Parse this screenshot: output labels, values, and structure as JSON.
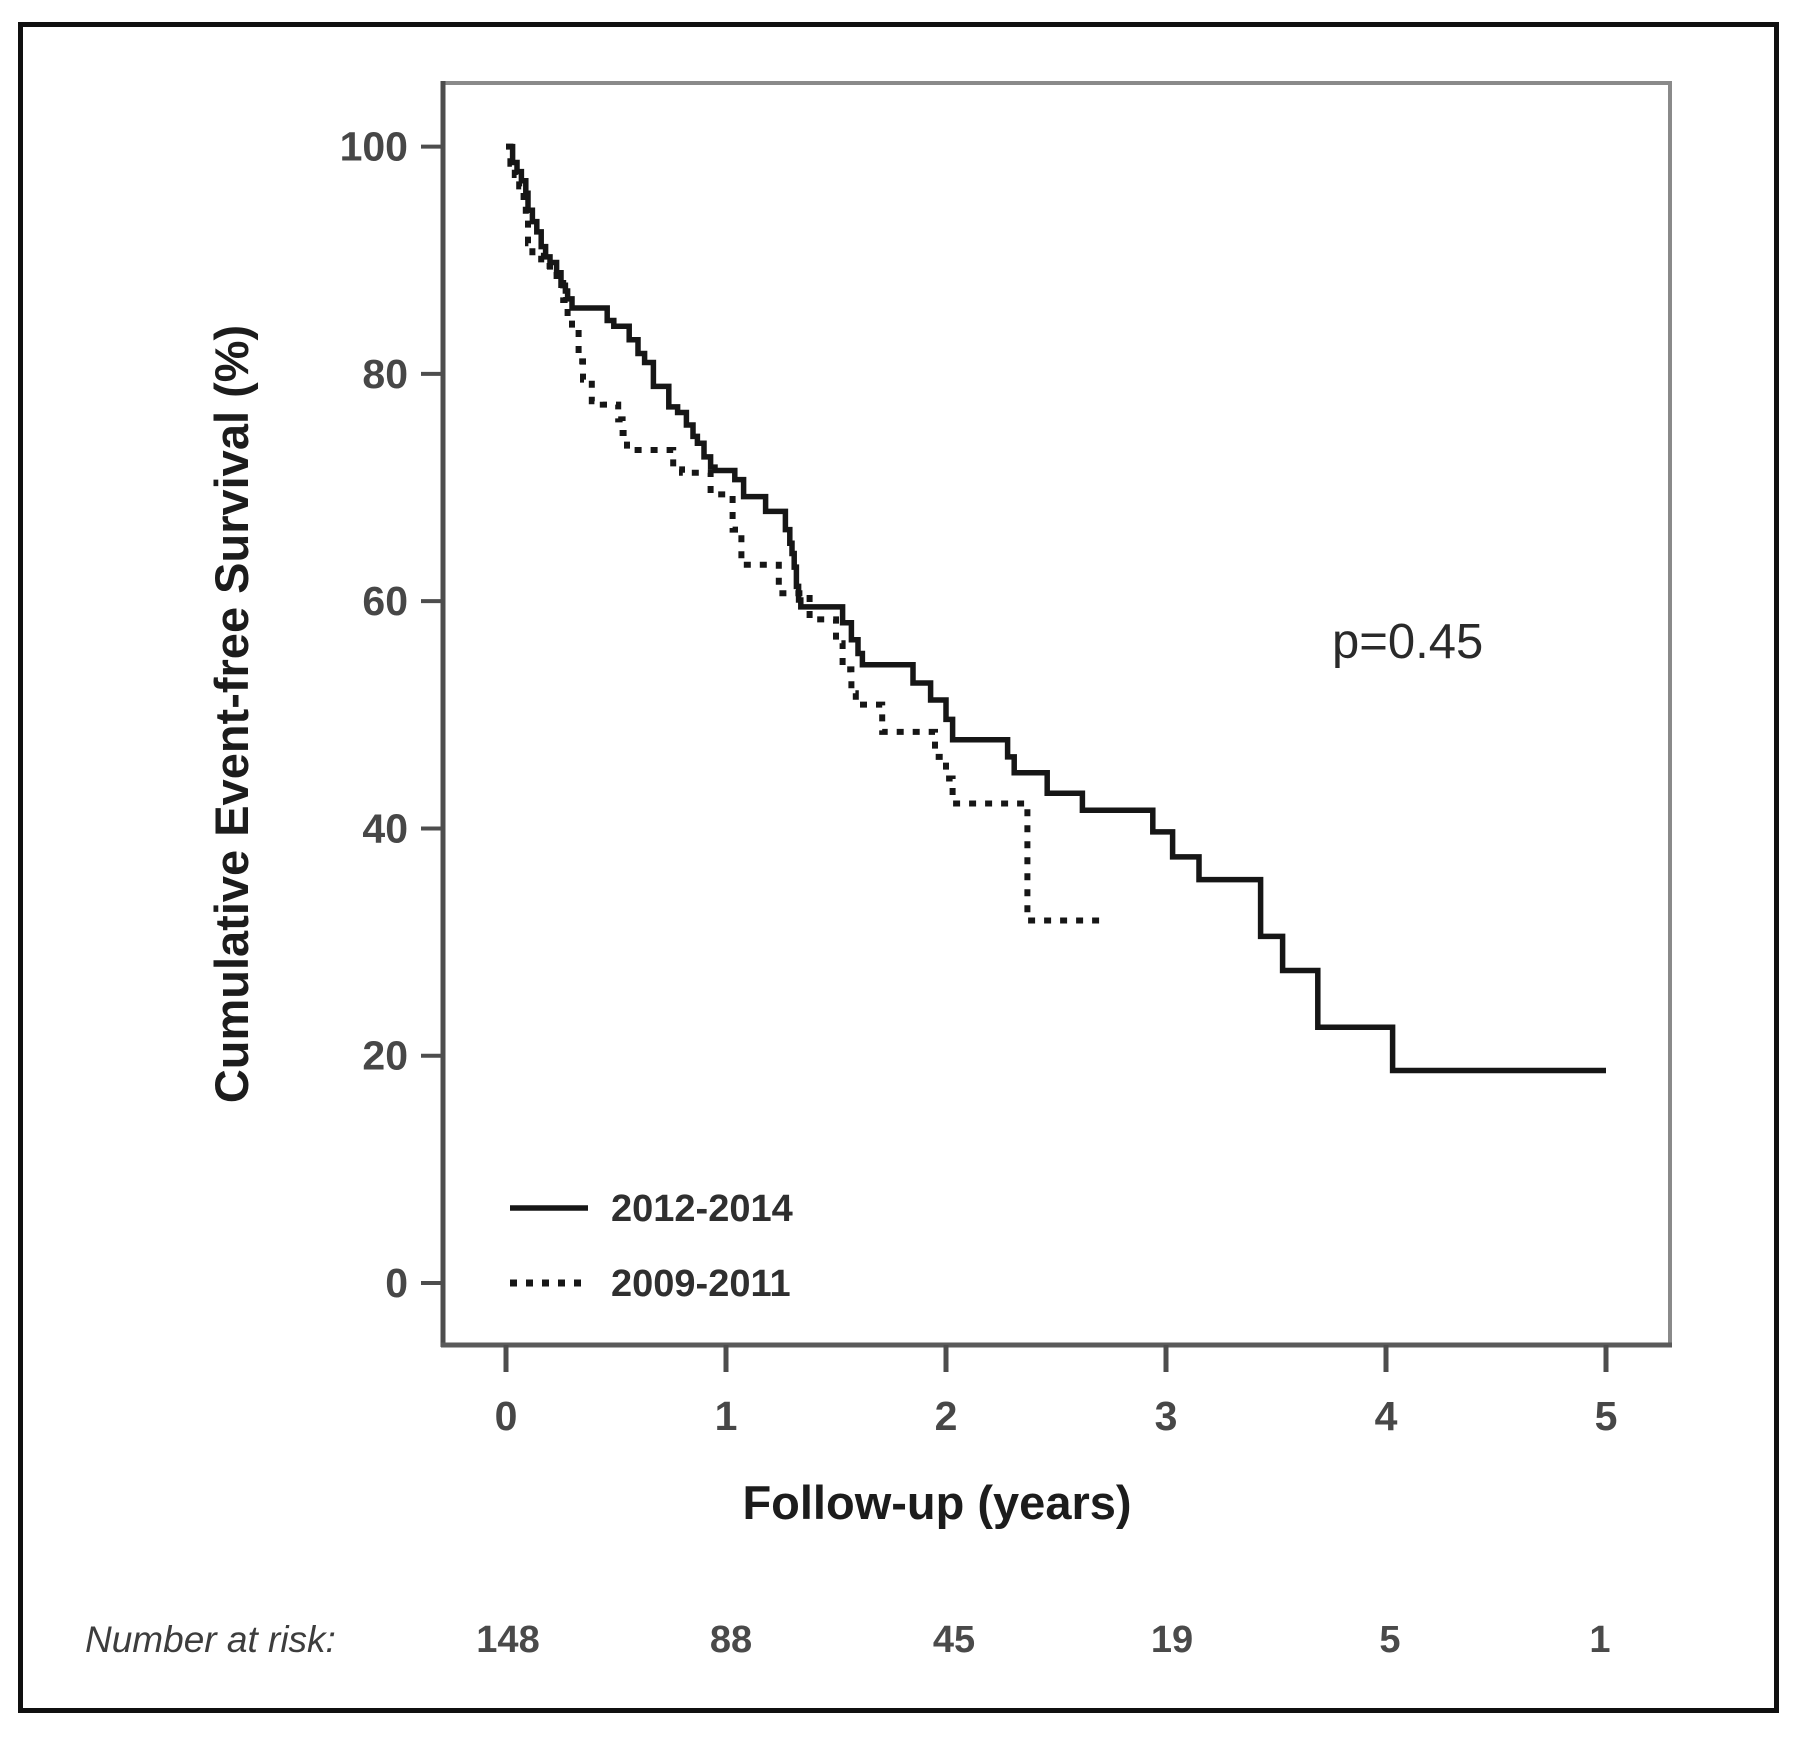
{
  "figure": {
    "p_value_label": "p=0.45",
    "y_axis_title": "Cumulative Event-free Survival (%)",
    "x_axis_title": "Follow-up (years)",
    "number_at_risk_label": "Number at risk:",
    "colors": {
      "curve": "#161616",
      "axis_dark": "#4d4d4d",
      "axis_light": "#8a8a8a",
      "tick_text": "#474747",
      "outer_border": "#101010",
      "background": "#ffffff"
    }
  },
  "chart_data": {
    "type": "line",
    "subtype": "kaplan-meier-step",
    "title": "",
    "xlabel": "Follow-up (years)",
    "ylabel": "Cumulative Event-free Survival (%)",
    "xlim": [
      0,
      5
    ],
    "ylim": [
      0,
      100
    ],
    "x_ticks": [
      0,
      1,
      2,
      3,
      4,
      5
    ],
    "y_ticks": [
      0,
      20,
      40,
      60,
      80,
      100
    ],
    "grid": false,
    "legend_position": "lower-left-inside",
    "annotation": {
      "text": "p=0.45"
    },
    "legend": [
      {
        "label": "2012-2014",
        "style": "solid"
      },
      {
        "label": "2009-2011",
        "style": "dashed"
      }
    ],
    "series": [
      {
        "name": "2012-2014",
        "style": "solid",
        "points": [
          [
            0,
            100
          ],
          [
            0.03,
            98.6
          ],
          [
            0.05,
            97.8
          ],
          [
            0.07,
            97.0
          ],
          [
            0.09,
            95.9
          ],
          [
            0.1,
            94.4
          ],
          [
            0.12,
            93.4
          ],
          [
            0.14,
            92.5
          ],
          [
            0.16,
            91.2
          ],
          [
            0.18,
            90.3
          ],
          [
            0.2,
            89.8
          ],
          [
            0.23,
            88.9
          ],
          [
            0.25,
            87.8
          ],
          [
            0.27,
            87.3
          ],
          [
            0.28,
            86.6
          ],
          [
            0.3,
            85.8
          ],
          [
            0.46,
            84.7
          ],
          [
            0.49,
            84.2
          ],
          [
            0.56,
            83.0
          ],
          [
            0.6,
            81.8
          ],
          [
            0.63,
            81.0
          ],
          [
            0.67,
            78.9
          ],
          [
            0.74,
            77.1
          ],
          [
            0.78,
            76.6
          ],
          [
            0.82,
            75.5
          ],
          [
            0.85,
            74.5
          ],
          [
            0.87,
            73.9
          ],
          [
            0.9,
            72.7
          ],
          [
            0.93,
            71.8
          ],
          [
            0.95,
            71.5
          ],
          [
            1.04,
            70.7
          ],
          [
            1.08,
            69.2
          ],
          [
            1.18,
            67.9
          ],
          [
            1.27,
            66.3
          ],
          [
            1.29,
            65.1
          ],
          [
            1.3,
            64.2
          ],
          [
            1.31,
            63.0
          ],
          [
            1.32,
            61.3
          ],
          [
            1.33,
            60.1
          ],
          [
            1.34,
            59.5
          ],
          [
            1.53,
            58.1
          ],
          [
            1.57,
            56.6
          ],
          [
            1.6,
            55.4
          ],
          [
            1.62,
            54.4
          ],
          [
            1.85,
            52.8
          ],
          [
            1.93,
            51.3
          ],
          [
            2.0,
            49.6
          ],
          [
            2.03,
            47.8
          ],
          [
            2.28,
            46.3
          ],
          [
            2.31,
            44.9
          ],
          [
            2.46,
            43.1
          ],
          [
            2.62,
            41.6
          ],
          [
            2.94,
            39.7
          ],
          [
            3.03,
            37.5
          ],
          [
            3.15,
            35.5
          ],
          [
            3.43,
            30.5
          ],
          [
            3.53,
            27.5
          ],
          [
            3.69,
            22.5
          ],
          [
            4.03,
            18.7
          ],
          [
            5.0,
            18.7
          ]
        ]
      },
      {
        "name": "2009-2011",
        "style": "dashed",
        "points": [
          [
            0,
            100
          ],
          [
            0.02,
            98.5
          ],
          [
            0.04,
            97.5
          ],
          [
            0.06,
            96.5
          ],
          [
            0.08,
            95.0
          ],
          [
            0.09,
            93.5
          ],
          [
            0.1,
            91.5
          ],
          [
            0.12,
            90.4
          ],
          [
            0.16,
            89.5
          ],
          [
            0.2,
            89.0
          ],
          [
            0.23,
            88.0
          ],
          [
            0.26,
            86.5
          ],
          [
            0.28,
            85.0
          ],
          [
            0.3,
            83.9
          ],
          [
            0.33,
            81.1
          ],
          [
            0.35,
            79.5
          ],
          [
            0.39,
            77.6
          ],
          [
            0.44,
            77.3
          ],
          [
            0.51,
            76.0
          ],
          [
            0.53,
            74.8
          ],
          [
            0.55,
            73.3
          ],
          [
            0.76,
            71.6
          ],
          [
            0.8,
            71.3
          ],
          [
            0.93,
            69.4
          ],
          [
            1.03,
            66.3
          ],
          [
            1.07,
            63.2
          ],
          [
            1.24,
            60.7
          ],
          [
            1.38,
            58.4
          ],
          [
            1.5,
            56.3
          ],
          [
            1.53,
            54.0
          ],
          [
            1.57,
            51.9
          ],
          [
            1.59,
            50.9
          ],
          [
            1.71,
            48.5
          ],
          [
            1.95,
            46.3
          ],
          [
            2.0,
            44.4
          ],
          [
            2.03,
            42.2
          ],
          [
            2.37,
            31.9
          ],
          [
            2.72,
            31.9
          ]
        ]
      }
    ],
    "number_at_risk": {
      "label": "Number at risk:",
      "times": [
        0,
        1,
        2,
        3,
        4,
        5
      ],
      "counts": [
        148,
        88,
        45,
        19,
        5,
        1
      ]
    }
  }
}
